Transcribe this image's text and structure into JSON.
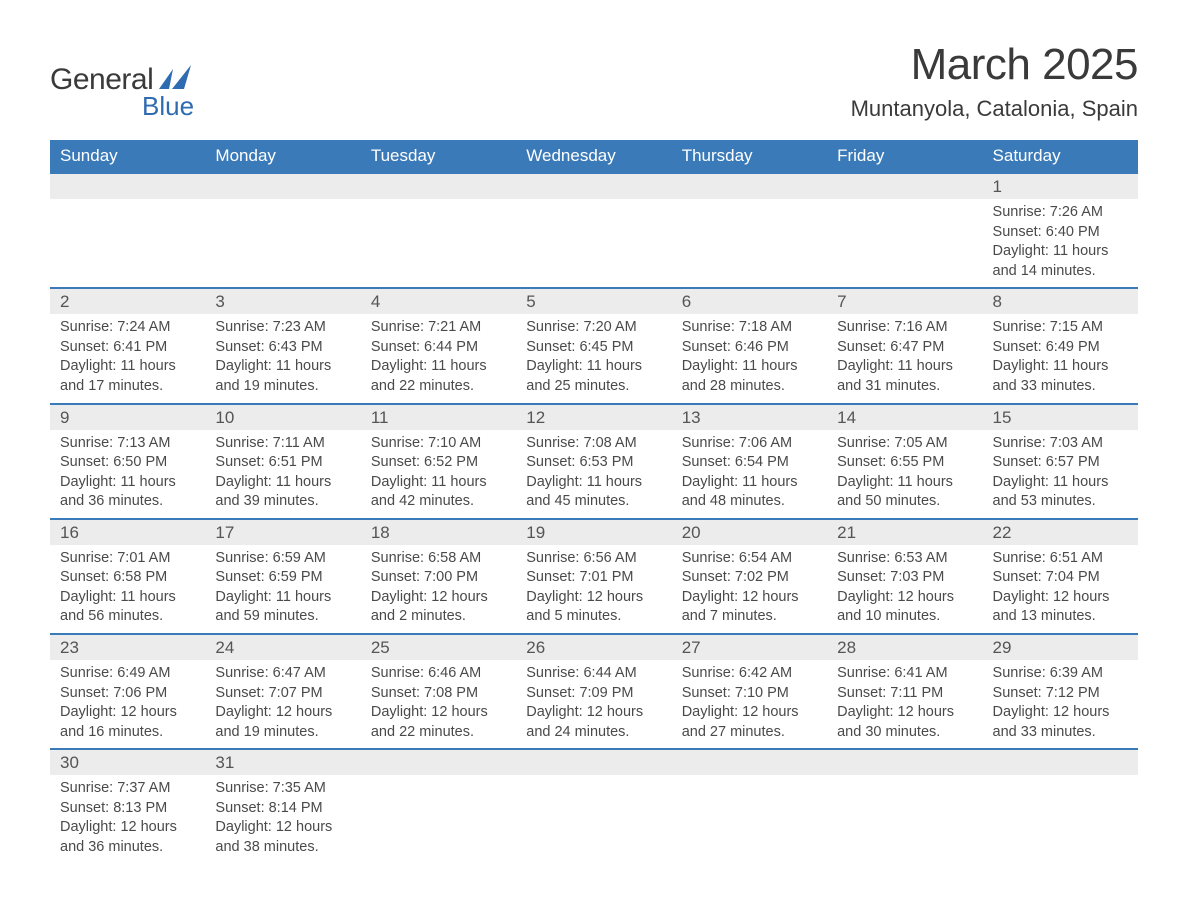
{
  "logo": {
    "text": "General",
    "sub": "Blue",
    "mark_color": "#2f6bb0"
  },
  "header": {
    "month": "March 2025",
    "location": "Muntanyola, Catalonia, Spain"
  },
  "colors": {
    "header_bg": "#3b7ab8",
    "header_text": "#ffffff",
    "daynum_bg": "#ececec",
    "row_divider": "#3b7ab8",
    "body_text": "#4a4a4a",
    "page_bg": "#ffffff"
  },
  "daynames": [
    "Sunday",
    "Monday",
    "Tuesday",
    "Wednesday",
    "Thursday",
    "Friday",
    "Saturday"
  ],
  "weeks": [
    [
      null,
      null,
      null,
      null,
      null,
      null,
      {
        "n": "1",
        "sunrise": "7:26 AM",
        "sunset": "6:40 PM",
        "daylight": "11 hours and 14 minutes."
      }
    ],
    [
      {
        "n": "2",
        "sunrise": "7:24 AM",
        "sunset": "6:41 PM",
        "daylight": "11 hours and 17 minutes."
      },
      {
        "n": "3",
        "sunrise": "7:23 AM",
        "sunset": "6:43 PM",
        "daylight": "11 hours and 19 minutes."
      },
      {
        "n": "4",
        "sunrise": "7:21 AM",
        "sunset": "6:44 PM",
        "daylight": "11 hours and 22 minutes."
      },
      {
        "n": "5",
        "sunrise": "7:20 AM",
        "sunset": "6:45 PM",
        "daylight": "11 hours and 25 minutes."
      },
      {
        "n": "6",
        "sunrise": "7:18 AM",
        "sunset": "6:46 PM",
        "daylight": "11 hours and 28 minutes."
      },
      {
        "n": "7",
        "sunrise": "7:16 AM",
        "sunset": "6:47 PM",
        "daylight": "11 hours and 31 minutes."
      },
      {
        "n": "8",
        "sunrise": "7:15 AM",
        "sunset": "6:49 PM",
        "daylight": "11 hours and 33 minutes."
      }
    ],
    [
      {
        "n": "9",
        "sunrise": "7:13 AM",
        "sunset": "6:50 PM",
        "daylight": "11 hours and 36 minutes."
      },
      {
        "n": "10",
        "sunrise": "7:11 AM",
        "sunset": "6:51 PM",
        "daylight": "11 hours and 39 minutes."
      },
      {
        "n": "11",
        "sunrise": "7:10 AM",
        "sunset": "6:52 PM",
        "daylight": "11 hours and 42 minutes."
      },
      {
        "n": "12",
        "sunrise": "7:08 AM",
        "sunset": "6:53 PM",
        "daylight": "11 hours and 45 minutes."
      },
      {
        "n": "13",
        "sunrise": "7:06 AM",
        "sunset": "6:54 PM",
        "daylight": "11 hours and 48 minutes."
      },
      {
        "n": "14",
        "sunrise": "7:05 AM",
        "sunset": "6:55 PM",
        "daylight": "11 hours and 50 minutes."
      },
      {
        "n": "15",
        "sunrise": "7:03 AM",
        "sunset": "6:57 PM",
        "daylight": "11 hours and 53 minutes."
      }
    ],
    [
      {
        "n": "16",
        "sunrise": "7:01 AM",
        "sunset": "6:58 PM",
        "daylight": "11 hours and 56 minutes."
      },
      {
        "n": "17",
        "sunrise": "6:59 AM",
        "sunset": "6:59 PM",
        "daylight": "11 hours and 59 minutes."
      },
      {
        "n": "18",
        "sunrise": "6:58 AM",
        "sunset": "7:00 PM",
        "daylight": "12 hours and 2 minutes."
      },
      {
        "n": "19",
        "sunrise": "6:56 AM",
        "sunset": "7:01 PM",
        "daylight": "12 hours and 5 minutes."
      },
      {
        "n": "20",
        "sunrise": "6:54 AM",
        "sunset": "7:02 PM",
        "daylight": "12 hours and 7 minutes."
      },
      {
        "n": "21",
        "sunrise": "6:53 AM",
        "sunset": "7:03 PM",
        "daylight": "12 hours and 10 minutes."
      },
      {
        "n": "22",
        "sunrise": "6:51 AM",
        "sunset": "7:04 PM",
        "daylight": "12 hours and 13 minutes."
      }
    ],
    [
      {
        "n": "23",
        "sunrise": "6:49 AM",
        "sunset": "7:06 PM",
        "daylight": "12 hours and 16 minutes."
      },
      {
        "n": "24",
        "sunrise": "6:47 AM",
        "sunset": "7:07 PM",
        "daylight": "12 hours and 19 minutes."
      },
      {
        "n": "25",
        "sunrise": "6:46 AM",
        "sunset": "7:08 PM",
        "daylight": "12 hours and 22 minutes."
      },
      {
        "n": "26",
        "sunrise": "6:44 AM",
        "sunset": "7:09 PM",
        "daylight": "12 hours and 24 minutes."
      },
      {
        "n": "27",
        "sunrise": "6:42 AM",
        "sunset": "7:10 PM",
        "daylight": "12 hours and 27 minutes."
      },
      {
        "n": "28",
        "sunrise": "6:41 AM",
        "sunset": "7:11 PM",
        "daylight": "12 hours and 30 minutes."
      },
      {
        "n": "29",
        "sunrise": "6:39 AM",
        "sunset": "7:12 PM",
        "daylight": "12 hours and 33 minutes."
      }
    ],
    [
      {
        "n": "30",
        "sunrise": "7:37 AM",
        "sunset": "8:13 PM",
        "daylight": "12 hours and 36 minutes."
      },
      {
        "n": "31",
        "sunrise": "7:35 AM",
        "sunset": "8:14 PM",
        "daylight": "12 hours and 38 minutes."
      },
      null,
      null,
      null,
      null,
      null
    ]
  ],
  "labels": {
    "sunrise": "Sunrise: ",
    "sunset": "Sunset: ",
    "daylight": "Daylight: "
  }
}
